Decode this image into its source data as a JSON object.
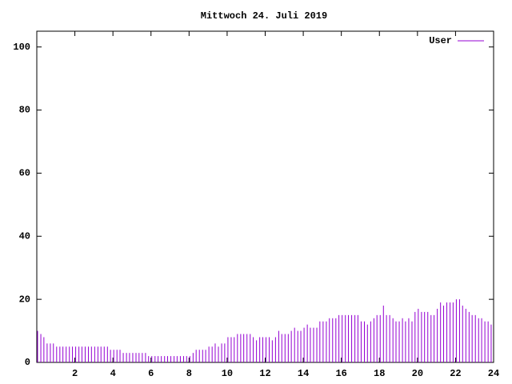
{
  "chart_data": {
    "type": "impulse",
    "title": "Mittwoch 24. Juli 2019",
    "x": [
      0,
      0.17,
      0.33,
      0.5,
      0.67,
      0.83,
      1,
      1.17,
      1.33,
      1.5,
      1.67,
      1.83,
      2,
      2.17,
      2.33,
      2.5,
      2.67,
      2.83,
      3,
      3.17,
      3.33,
      3.5,
      3.67,
      3.83,
      4,
      4.17,
      4.33,
      4.5,
      4.67,
      4.83,
      5,
      5.17,
      5.33,
      5.5,
      5.67,
      5.83,
      6,
      6.17,
      6.33,
      6.5,
      6.67,
      6.83,
      7,
      7.17,
      7.33,
      7.5,
      7.67,
      7.83,
      8,
      8.17,
      8.33,
      8.5,
      8.67,
      8.83,
      9,
      9.17,
      9.33,
      9.5,
      9.67,
      9.83,
      10,
      10.17,
      10.33,
      10.5,
      10.67,
      10.83,
      11,
      11.17,
      11.33,
      11.5,
      11.67,
      11.83,
      12,
      12.17,
      12.33,
      12.5,
      12.67,
      12.83,
      13,
      13.17,
      13.33,
      13.5,
      13.67,
      13.83,
      14,
      14.17,
      14.33,
      14.5,
      14.67,
      14.83,
      15,
      15.17,
      15.33,
      15.5,
      15.67,
      15.83,
      16,
      16.17,
      16.33,
      16.5,
      16.67,
      16.83,
      17,
      17.17,
      17.33,
      17.5,
      17.67,
      17.83,
      18,
      18.17,
      18.33,
      18.5,
      18.67,
      18.83,
      19,
      19.17,
      19.33,
      19.5,
      19.67,
      19.83,
      20,
      20.17,
      20.33,
      20.5,
      20.67,
      20.83,
      21,
      21.17,
      21.33,
      21.5,
      21.67,
      21.83,
      22,
      22.17,
      22.33,
      22.5,
      22.67,
      22.83,
      23,
      23.17,
      23.33,
      23.5,
      23.67,
      23.83
    ],
    "series": [
      {
        "name": "User",
        "color": "#9400d3",
        "values": [
          10,
          9,
          8,
          6,
          6,
          6,
          5,
          5,
          5,
          5,
          5,
          5,
          5,
          5,
          5,
          5,
          5,
          5,
          5,
          5,
          5,
          5,
          5,
          4,
          4,
          4,
          4,
          3,
          3,
          3,
          3,
          3,
          3,
          3,
          3,
          2,
          2,
          2,
          2,
          2,
          2,
          2,
          2,
          2,
          2,
          2,
          2,
          2,
          2,
          3,
          4,
          4,
          4,
          4,
          5,
          5,
          6,
          5,
          6,
          6,
          8,
          8,
          8,
          9,
          9,
          9,
          9,
          9,
          8,
          7,
          8,
          8,
          8,
          8,
          7,
          8,
          10,
          9,
          9,
          9,
          10,
          11,
          10,
          10,
          11,
          12,
          11,
          11,
          11,
          13,
          13,
          13,
          14,
          14,
          14,
          15,
          15,
          15,
          15,
          15,
          15,
          15,
          13,
          13,
          12,
          13,
          14,
          15,
          15,
          18,
          15,
          15,
          14,
          13,
          13,
          14,
          13,
          14,
          13,
          16,
          17,
          16,
          16,
          16,
          15,
          15,
          17,
          19,
          18,
          19,
          19,
          19,
          20,
          20,
          18,
          17,
          16,
          15,
          15,
          14,
          14,
          13,
          13,
          12
        ]
      }
    ],
    "xlim": [
      0,
      24
    ],
    "xticks": [
      2,
      4,
      6,
      8,
      10,
      12,
      14,
      16,
      18,
      20,
      22,
      24
    ],
    "ylim": [
      0,
      105
    ],
    "yticks": [
      0,
      20,
      40,
      60,
      80,
      100
    ],
    "legend": "top-right"
  }
}
